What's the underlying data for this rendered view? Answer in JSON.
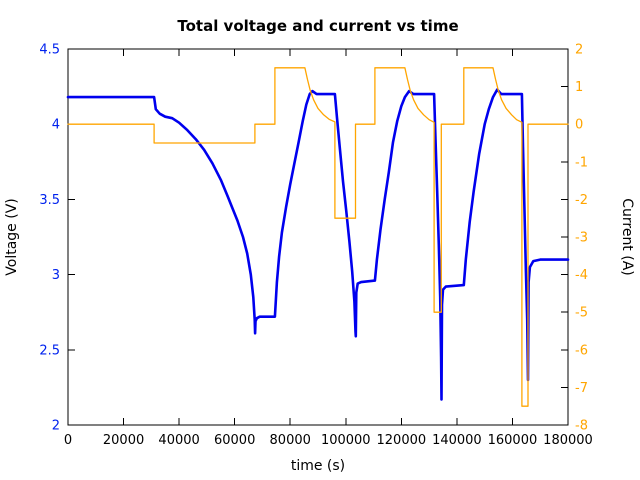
{
  "chart_data": {
    "type": "line",
    "title": "Total voltage and current vs time",
    "xlabel": "time (s)",
    "grid": false,
    "legend": "none",
    "x_range": [
      0,
      180000
    ],
    "x_ticks": [
      0,
      20000,
      40000,
      60000,
      80000,
      100000,
      120000,
      140000,
      160000,
      180000
    ],
    "left_axis": {
      "label": "Voltage (V)",
      "range": [
        2,
        4.5
      ],
      "ticks": [
        4.5,
        4,
        3.5,
        3,
        2.5,
        2
      ],
      "color": "#0022ee"
    },
    "right_axis": {
      "label": "Current (A)",
      "range": [
        -8,
        2
      ],
      "ticks": [
        2,
        1,
        0,
        -1,
        -2,
        -3,
        -4,
        -5,
        -6,
        -7,
        -8
      ],
      "color": "#ffa500"
    },
    "series": [
      {
        "name": "voltage",
        "axis": "left",
        "color": "#0000ee",
        "width": 2.6,
        "points": [
          [
            0,
            4.18
          ],
          [
            31000,
            4.18
          ],
          [
            31600,
            4.1
          ],
          [
            33000,
            4.07
          ],
          [
            35000,
            4.05
          ],
          [
            37500,
            4.04
          ],
          [
            40000,
            4.01
          ],
          [
            43000,
            3.96
          ],
          [
            46000,
            3.9
          ],
          [
            49000,
            3.83
          ],
          [
            52000,
            3.74
          ],
          [
            55000,
            3.63
          ],
          [
            57500,
            3.52
          ],
          [
            59000,
            3.45
          ],
          [
            61000,
            3.36
          ],
          [
            63000,
            3.25
          ],
          [
            64500,
            3.14
          ],
          [
            65800,
            3.0
          ],
          [
            66700,
            2.85
          ],
          [
            67200,
            2.7
          ],
          [
            67350,
            2.61
          ],
          [
            67500,
            2.69
          ],
          [
            68000,
            2.71
          ],
          [
            69000,
            2.72
          ],
          [
            74500,
            2.72
          ],
          [
            75200,
            2.95
          ],
          [
            76000,
            3.12
          ],
          [
            77000,
            3.28
          ],
          [
            78500,
            3.45
          ],
          [
            80000,
            3.6
          ],
          [
            81500,
            3.74
          ],
          [
            83000,
            3.88
          ],
          [
            84500,
            4.02
          ],
          [
            85800,
            4.13
          ],
          [
            87000,
            4.2
          ],
          [
            88000,
            4.22
          ],
          [
            89500,
            4.2
          ],
          [
            96100,
            4.2
          ],
          [
            96800,
            4.05
          ],
          [
            97800,
            3.85
          ],
          [
            99000,
            3.62
          ],
          [
            100200,
            3.42
          ],
          [
            101300,
            3.22
          ],
          [
            102300,
            3.02
          ],
          [
            103100,
            2.82
          ],
          [
            103500,
            2.62
          ],
          [
            103600,
            2.59
          ],
          [
            103800,
            2.88
          ],
          [
            104300,
            2.94
          ],
          [
            105500,
            2.95
          ],
          [
            110500,
            2.96
          ],
          [
            111200,
            3.1
          ],
          [
            112500,
            3.3
          ],
          [
            114000,
            3.5
          ],
          [
            115500,
            3.68
          ],
          [
            117000,
            3.88
          ],
          [
            118500,
            4.02
          ],
          [
            120000,
            4.12
          ],
          [
            121300,
            4.18
          ],
          [
            122800,
            4.22
          ],
          [
            124300,
            4.2
          ],
          [
            131800,
            4.2
          ],
          [
            132300,
            3.9
          ],
          [
            132900,
            3.55
          ],
          [
            133500,
            3.2
          ],
          [
            134000,
            2.85
          ],
          [
            134300,
            2.45
          ],
          [
            134450,
            2.17
          ],
          [
            134650,
            2.8
          ],
          [
            135000,
            2.9
          ],
          [
            136000,
            2.92
          ],
          [
            142500,
            2.93
          ],
          [
            143200,
            3.1
          ],
          [
            144600,
            3.35
          ],
          [
            146000,
            3.55
          ],
          [
            148000,
            3.8
          ],
          [
            150000,
            4.0
          ],
          [
            151500,
            4.1
          ],
          [
            153000,
            4.18
          ],
          [
            154500,
            4.23
          ],
          [
            156000,
            4.2
          ],
          [
            163400,
            4.2
          ],
          [
            163800,
            3.85
          ],
          [
            164300,
            3.45
          ],
          [
            164800,
            3.05
          ],
          [
            165300,
            2.7
          ],
          [
            165600,
            2.3
          ],
          [
            165800,
            2.95
          ],
          [
            166300,
            3.05
          ],
          [
            167500,
            3.09
          ],
          [
            170000,
            3.1
          ],
          [
            180000,
            3.1
          ]
        ]
      },
      {
        "name": "current",
        "axis": "right",
        "color": "#ffa500",
        "width": 1.3,
        "points": [
          [
            0,
            0
          ],
          [
            31000,
            0
          ],
          [
            31000,
            -0.5
          ],
          [
            67300,
            -0.5
          ],
          [
            67300,
            0
          ],
          [
            74500,
            0
          ],
          [
            74500,
            1.5
          ],
          [
            85300,
            1.5
          ],
          [
            86200,
            1.2
          ],
          [
            87200,
            0.9
          ],
          [
            88400,
            0.65
          ],
          [
            90000,
            0.42
          ],
          [
            92000,
            0.25
          ],
          [
            94000,
            0.13
          ],
          [
            96100,
            0.06
          ],
          [
            96100,
            -2.5
          ],
          [
            103500,
            -2.5
          ],
          [
            103500,
            0
          ],
          [
            110500,
            0
          ],
          [
            110500,
            1.5
          ],
          [
            121300,
            1.5
          ],
          [
            122200,
            1.2
          ],
          [
            123200,
            0.9
          ],
          [
            124400,
            0.65
          ],
          [
            126000,
            0.42
          ],
          [
            128000,
            0.25
          ],
          [
            130000,
            0.12
          ],
          [
            131800,
            0.05
          ],
          [
            131800,
            -5
          ],
          [
            134400,
            -5
          ],
          [
            134400,
            0
          ],
          [
            142500,
            0
          ],
          [
            142500,
            1.5
          ],
          [
            153000,
            1.5
          ],
          [
            153900,
            1.2
          ],
          [
            154900,
            0.9
          ],
          [
            156100,
            0.65
          ],
          [
            157700,
            0.42
          ],
          [
            159700,
            0.25
          ],
          [
            161500,
            0.12
          ],
          [
            163400,
            0.05
          ],
          [
            163400,
            -7.5
          ],
          [
            165600,
            -7.5
          ],
          [
            165600,
            0
          ],
          [
            180000,
            0
          ]
        ]
      }
    ]
  }
}
